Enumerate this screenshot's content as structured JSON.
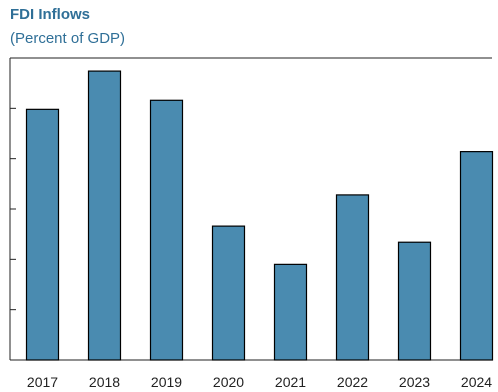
{
  "chart_data": {
    "type": "bar",
    "title": "FDI Inflows",
    "subtitle": "(Percent of GDP)",
    "categories": [
      "2017",
      "2018",
      "2019",
      "2020",
      "2021",
      "2022",
      "2023",
      "2024"
    ],
    "values": [
      2.49,
      2.87,
      2.58,
      1.33,
      0.95,
      1.64,
      1.17,
      2.07
    ],
    "ylim": [
      0,
      3.0
    ],
    "ytick_step": 0.5,
    "show_ytick_labels": false,
    "grid": false,
    "bar_color": "#4a8bb0",
    "bar_edge_color": "#000000"
  }
}
